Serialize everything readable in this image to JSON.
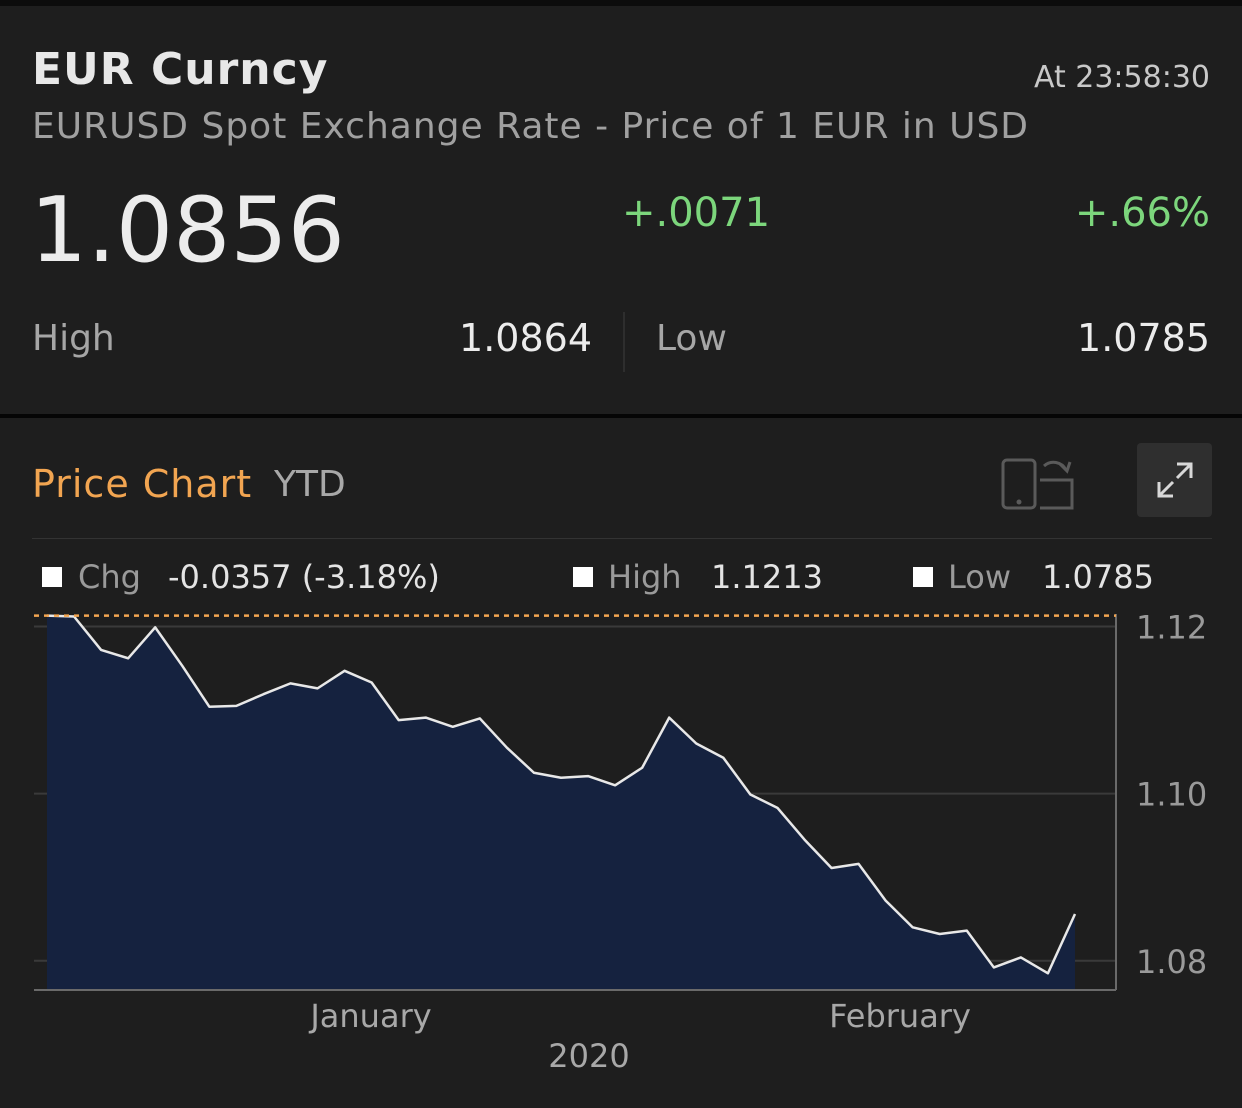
{
  "header": {
    "ticker": "EUR Curncy",
    "time": "At 23:58:30",
    "description": "EURUSD Spot Exchange Rate - Price of 1 EUR in USD",
    "price": "1.0856",
    "change": "+.0071",
    "change_pct": "+.66%",
    "high_label": "High",
    "high_value": "1.0864",
    "low_label": "Low",
    "low_value": "1.0785"
  },
  "chart_section": {
    "title": "Price Chart",
    "period": "YTD",
    "icons": [
      "rotate-device-icon",
      "expand-icon"
    ],
    "legend": {
      "chg_label": "Chg",
      "chg_value": "-0.0357 (-3.18%)",
      "high_label": "High",
      "high_value": "1.1213",
      "low_label": "Low",
      "low_value": "1.0785"
    }
  },
  "chart_data": {
    "type": "area",
    "title": "",
    "xlabel": "2020",
    "ylabel": "",
    "x_tick_labels": [
      "January",
      "February"
    ],
    "y_ticks": [
      1.08,
      1.1,
      1.12
    ],
    "y_tick_labels": [
      "1.08",
      "1.10",
      "1.12"
    ],
    "ylim": [
      1.0765,
      1.1215
    ],
    "reference_line": 1.1213,
    "grid": true,
    "series": [
      {
        "values": [
          1.1213,
          1.1212,
          1.1172,
          1.1162,
          1.1199,
          1.1153,
          1.1104,
          1.1105,
          1.1119,
          1.1132,
          1.1126,
          1.1147,
          1.1133,
          1.1088,
          1.1091,
          1.108,
          1.109,
          1.1055,
          1.1025,
          1.1019,
          1.1021,
          1.101,
          1.1031,
          1.1091,
          1.106,
          1.1043,
          1.0999,
          1.0983,
          1.0945,
          1.0911,
          1.0916,
          1.0872,
          1.084,
          1.0832,
          1.0836,
          1.0792,
          1.0804,
          1.0785,
          1.0856
        ]
      }
    ],
    "colors": {
      "line": "#e8e8e8",
      "fill": "#15223f",
      "reference": "#f2a551"
    }
  }
}
